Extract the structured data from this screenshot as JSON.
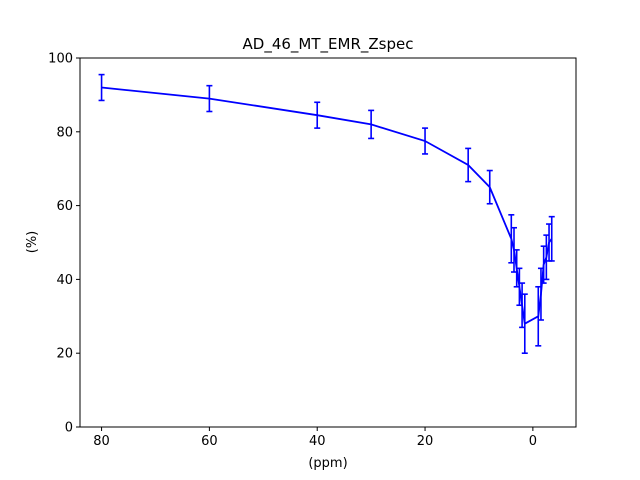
{
  "chart_data": {
    "type": "line",
    "title": "AD_46_MT_EMR_Zspec",
    "xlabel": "(ppm)",
    "ylabel": "(%)",
    "xlim": [
      84,
      -8
    ],
    "ylim": [
      0,
      100
    ],
    "x_ticks": [
      80,
      60,
      40,
      20,
      0
    ],
    "y_ticks": [
      0,
      20,
      40,
      60,
      80,
      100
    ],
    "grid": false,
    "color": "#0000ff",
    "series": [
      {
        "x": [
          80,
          60,
          40,
          30,
          20,
          12,
          8,
          4,
          3.5,
          3,
          2.5,
          2,
          1.5,
          -1,
          -1.5,
          -2,
          -2.5,
          -3,
          -3.5
        ],
        "y": [
          92,
          89,
          84.5,
          82,
          77.5,
          71,
          65,
          51,
          48,
          43,
          38,
          33,
          28,
          30,
          36,
          44,
          46,
          50,
          51
        ],
        "err": [
          3.5,
          3.5,
          3.5,
          3.8,
          3.5,
          4.5,
          4.5,
          6.5,
          6,
          5,
          5,
          6,
          8,
          8,
          7,
          5,
          6,
          5,
          6
        ]
      }
    ]
  }
}
